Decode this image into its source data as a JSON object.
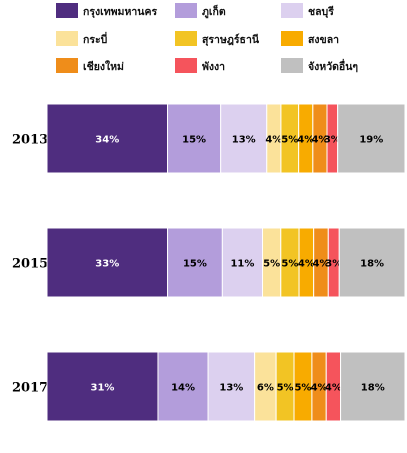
{
  "chart_data": {
    "type": "bar",
    "orientation": "horizontal",
    "stacked": true,
    "normalized": true,
    "title": "",
    "xlabel": "",
    "ylabel": "",
    "legend_position": "top",
    "grid": false,
    "categories": [
      "2013",
      "2015",
      "2017"
    ],
    "series": [
      {
        "name": "กรุงเทพมหานคร",
        "color": "#4f2d7f",
        "values": [
          34,
          33,
          31
        ]
      },
      {
        "name": "ภูเก็ต",
        "color": "#b39ddb",
        "values": [
          15,
          15,
          14
        ]
      },
      {
        "name": "ชลบุรี",
        "color": "#dcd0ef",
        "values": [
          13,
          11,
          13
        ]
      },
      {
        "name": "กระบี่",
        "color": "#fbe29a",
        "values": [
          4,
          5,
          6
        ]
      },
      {
        "name": "สุราษฎร์ธานี",
        "color": "#f2c424",
        "values": [
          5,
          5,
          5
        ]
      },
      {
        "name": "สงขลา",
        "color": "#f8ab00",
        "values": [
          4,
          4,
          5
        ]
      },
      {
        "name": "เชียงใหม่",
        "color": "#ef8d1a",
        "values": [
          4,
          4,
          4
        ]
      },
      {
        "name": "พังงา",
        "color": "#f5545c",
        "values": [
          3,
          3,
          4
        ]
      },
      {
        "name": "จังหวัดอื่นๆ",
        "color": "#c0c0c0",
        "values": [
          19,
          18,
          18
        ]
      }
    ]
  }
}
